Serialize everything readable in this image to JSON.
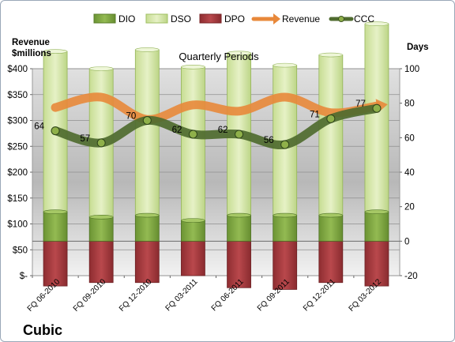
{
  "chart_data": {
    "type": "bar",
    "title": "Quarterly Periods",
    "company": "Cubic",
    "y_left_label": [
      "Revenue",
      "$millions"
    ],
    "y_right_label": "Days",
    "y_left_ticks": [
      "$-",
      "$50",
      "$100",
      "$150",
      "$200",
      "$250",
      "$300",
      "$350",
      "$400"
    ],
    "y_right_ticks": [
      "-20",
      "0",
      "20",
      "40",
      "60",
      "80",
      "100"
    ],
    "y_left_range": [
      0,
      400
    ],
    "y_right_range": [
      -20,
      100
    ],
    "categories": [
      "FQ 06-2010",
      "FQ 09-2010",
      "FQ 12-2010",
      "FQ 03-2011",
      "FQ 06-2011",
      "FQ 09-2011",
      "FQ 12-2011",
      "FQ 03-2012"
    ],
    "legend_position": "top",
    "grid": true,
    "series": [
      {
        "name": "DIO",
        "type": "stacked-bar-days",
        "color": "#7fa63e",
        "values": [
          17,
          14,
          15,
          12,
          15,
          15,
          15,
          17
        ]
      },
      {
        "name": "DSO",
        "type": "stacked-bar-days",
        "color": "#d6e8a8",
        "values": [
          93,
          86,
          96,
          89,
          94,
          87,
          93,
          109
        ]
      },
      {
        "name": "DPO",
        "type": "bar-days-below",
        "color": "#a33a3e",
        "values": [
          -26,
          -24,
          -24,
          -20,
          -27,
          -28,
          -24,
          -26
        ]
      },
      {
        "name": "Revenue",
        "type": "line-money",
        "color": "#e8883a",
        "values": [
          325,
          345,
          302,
          330,
          318,
          345,
          315,
          328
        ]
      },
      {
        "name": "CCC",
        "type": "line-days",
        "color": "#4f6b2f",
        "values": [
          64,
          57,
          70,
          62,
          62,
          56,
          71,
          77
        ]
      }
    ]
  }
}
